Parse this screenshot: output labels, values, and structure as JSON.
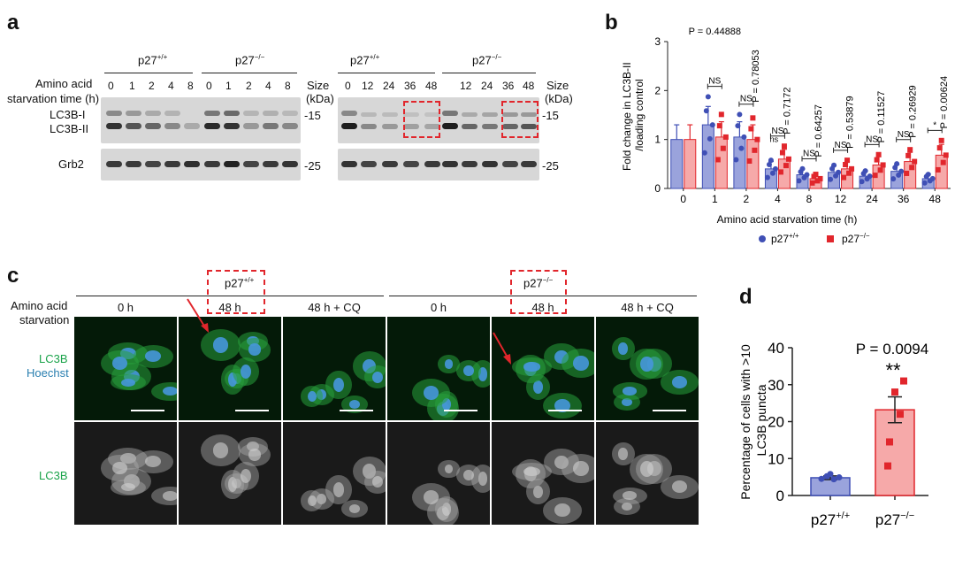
{
  "colors": {
    "wt": "#3f4fb5",
    "ko": "#e1262c",
    "wt_bar": "#9aa3dc",
    "ko_bar": "#f6a9a9",
    "lc3b_green": "#1aa34a",
    "hoechst_blue": "#2a7fb0"
  },
  "panel_a": {
    "label": "a",
    "row1_label": "Amino acid",
    "row2_label": "starvation time (h)",
    "left_groups": [
      {
        "genotype": "p27",
        "sup": "+/+",
        "times": [
          "0",
          "1",
          "2",
          "4",
          "8"
        ]
      },
      {
        "genotype": "p27",
        "sup": "−/−",
        "times": [
          "0",
          "1",
          "2",
          "4",
          "8"
        ]
      }
    ],
    "right_groups": [
      {
        "genotype": "p27",
        "sup": "+/+",
        "times": [
          "0",
          "12",
          "24",
          "36",
          "48"
        ]
      },
      {
        "genotype": "p27",
        "sup": "−/−",
        "times": [
          "12",
          "24",
          "36",
          "48"
        ]
      }
    ],
    "size_label": "Size",
    "kda_label": "(kDa)",
    "band_lc3b_i": "LC3B-I",
    "band_lc3b_ii": "LC3B-II",
    "band_grb2": "Grb2",
    "mw_15": "15",
    "mw_25": "25"
  },
  "panel_b": {
    "label": "b",
    "chart_data": {
      "type": "bar",
      "ylabel": "Fold change in LC3B-II /loading control",
      "xlabel": "Amino acid starvation time (h)",
      "categories": [
        "0",
        "1",
        "2",
        "4",
        "8",
        "12",
        "24",
        "36",
        "48"
      ],
      "ylim": [
        0,
        3
      ],
      "yticks": [
        "0",
        "1",
        "2",
        "3"
      ],
      "series": [
        {
          "name": "p27+/+",
          "values": [
            1.0,
            1.3,
            1.05,
            0.4,
            0.28,
            0.33,
            0.25,
            0.35,
            0.2
          ]
        },
        {
          "name": "p27−/−",
          "values": [
            1.0,
            1.05,
            1.0,
            0.6,
            0.2,
            0.4,
            0.48,
            0.55,
            0.68
          ]
        }
      ],
      "pvalues": [
        "P = 0.44888",
        "P = 0.78053",
        "P = 0.7172",
        "P = 0.64257",
        "P = 0.53879",
        "P = 0.11527",
        "P = 0.26929",
        "P = 0.00624"
      ],
      "sig_labels": [
        "NS",
        "NS",
        "NS",
        "NS",
        "NS",
        "NS",
        "NS",
        "*"
      ],
      "extra_label": "ns",
      "legend": [
        {
          "genotype": "p27",
          "sup": "+/+"
        },
        {
          "genotype": "p27",
          "sup": "−/−"
        }
      ]
    }
  },
  "panel_c": {
    "label": "c",
    "genotype_left": "p27",
    "genotype_left_sup": "+/+",
    "genotype_right": "p27",
    "genotype_right_sup": "−/−",
    "row_label_1": "Amino acid",
    "row_label_2": "starvation",
    "columns": [
      "0 h",
      "48 h",
      "48 h + CQ",
      "0 h",
      "48 h",
      "48 h + CQ"
    ],
    "stain_lc3b": "LC3B",
    "stain_hoechst": "Hoechst",
    "stain_lc3b_only": "LC3B"
  },
  "panel_d": {
    "label": "d",
    "chart_data": {
      "type": "bar",
      "ylabel": "Percentage of cells with >10 LC3B puncta",
      "categories": [
        "p27+/+",
        "p27−/−"
      ],
      "category_labels": [
        {
          "genotype": "p27",
          "sup": "+/+"
        },
        {
          "genotype": "p27",
          "sup": "−/−"
        }
      ],
      "values": [
        4.8,
        23.2
      ],
      "errors": [
        0.5,
        3.5
      ],
      "points": [
        [
          4.5,
          5.2,
          4.4,
          4.9,
          5.8
        ],
        [
          14.5,
          22.0,
          28.0,
          31.0,
          8.0
        ]
      ],
      "ylim": [
        0,
        40
      ],
      "yticks": [
        "0",
        "10",
        "20",
        "30",
        "40"
      ],
      "pvalue": "P = 0.0094",
      "sig": "**"
    }
  }
}
